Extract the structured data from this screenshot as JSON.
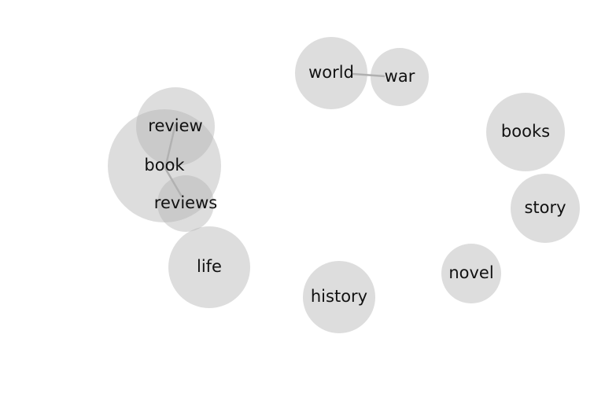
{
  "diagram": {
    "type": "word-bubble-network",
    "colors": {
      "bubble": "#b3b3b3",
      "edge": "#8c8c8c",
      "label": "#111111"
    },
    "nodes": [
      {
        "id": "book",
        "label": "book"
      },
      {
        "id": "review",
        "label": "review"
      },
      {
        "id": "reviews",
        "label": "reviews"
      },
      {
        "id": "world",
        "label": "world"
      },
      {
        "id": "war",
        "label": "war"
      },
      {
        "id": "books",
        "label": "books"
      },
      {
        "id": "story",
        "label": "story"
      },
      {
        "id": "life",
        "label": "life"
      },
      {
        "id": "history",
        "label": "history"
      },
      {
        "id": "novel",
        "label": "novel"
      }
    ],
    "edges": [
      {
        "source": "world",
        "target": "war"
      },
      {
        "source": "review",
        "target": "book"
      },
      {
        "source": "book",
        "target": "reviews"
      }
    ]
  }
}
